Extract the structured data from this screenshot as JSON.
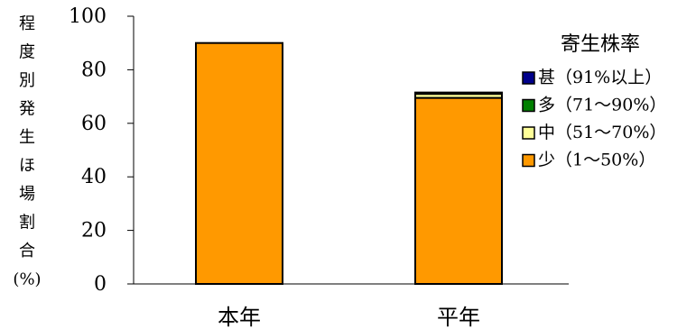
{
  "chart_data": {
    "type": "bar",
    "stacked": true,
    "categories": [
      "本年",
      "平年"
    ],
    "series": [
      {
        "name": "甚（91%以上）",
        "color": "#00008B",
        "values": [
          0,
          0
        ]
      },
      {
        "name": "多（71〜90%）",
        "color": "#008000",
        "values": [
          0,
          0.5
        ]
      },
      {
        "name": "中（51〜70%）",
        "color": "#FFFF99",
        "values": [
          0,
          1.5
        ]
      },
      {
        "name": "少（1〜50%）",
        "color": "#FF9900",
        "values": [
          90,
          69.5
        ]
      }
    ],
    "ylabel_chars": [
      "程",
      "度",
      "別",
      "発",
      "生",
      "ほ",
      "場",
      "割",
      "合",
      "(%)"
    ],
    "yticks": [
      0,
      20,
      40,
      60,
      80,
      100
    ],
    "ylim": [
      0,
      100
    ],
    "legend_title": "寄生株率",
    "legend_position": "right",
    "grid": false
  }
}
